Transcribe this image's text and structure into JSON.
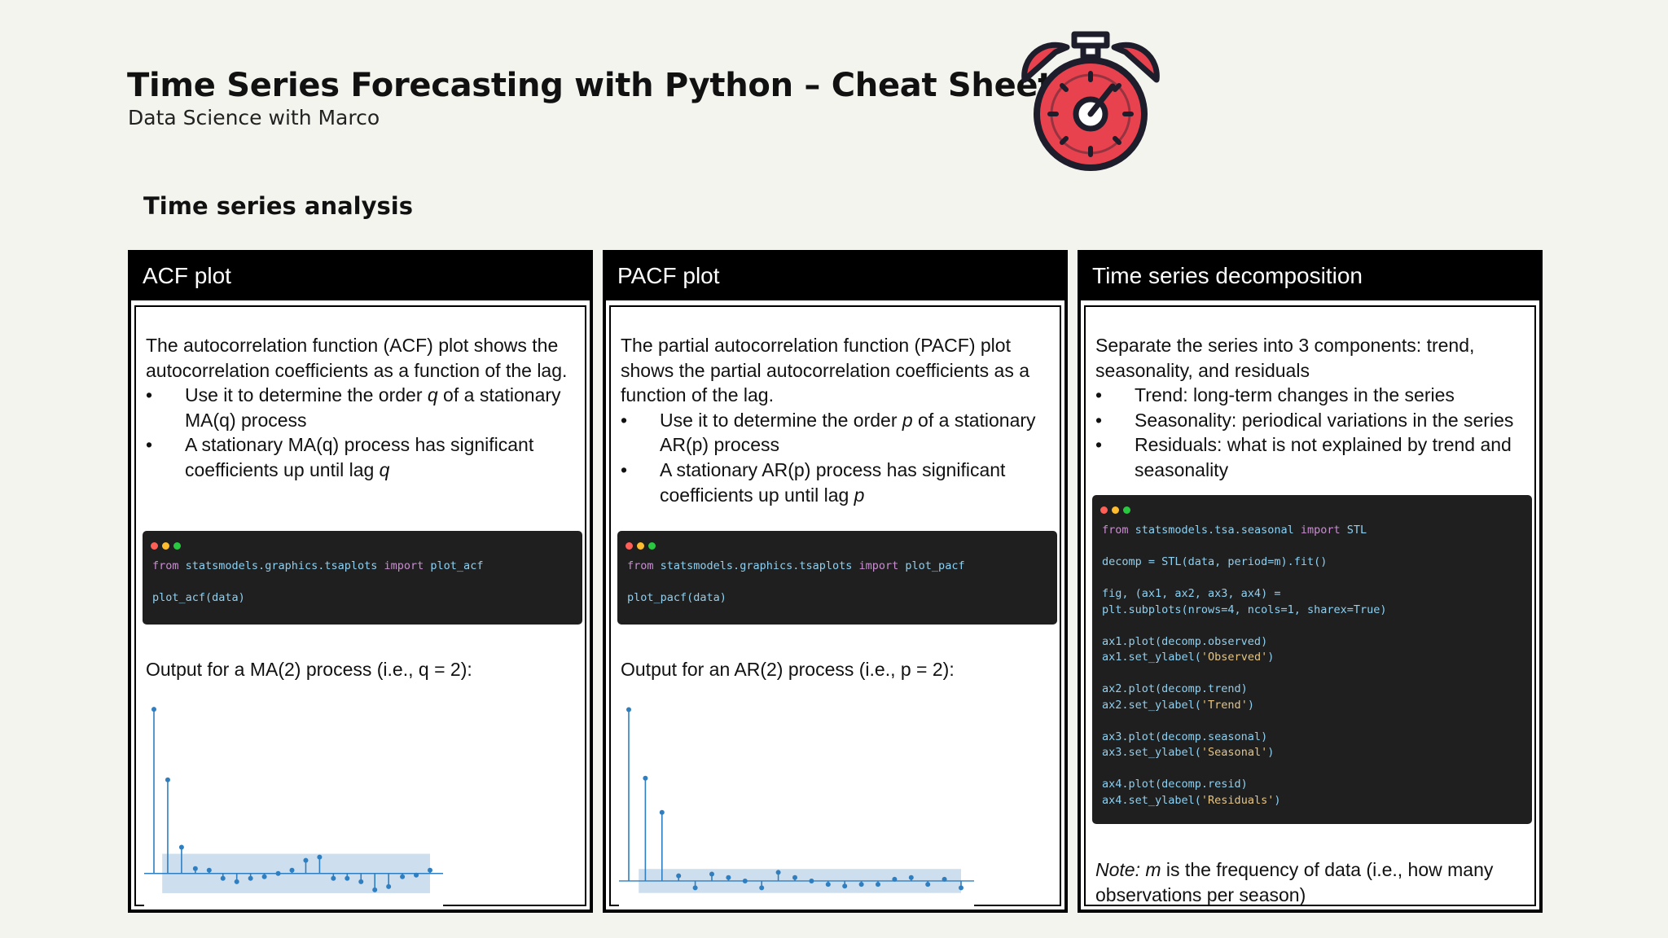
{
  "header": {
    "title": "Time Series Forecasting with Python – Cheat Sheet",
    "subtitle": "Data Science with Marco",
    "logo_icon": "stopwatch-icon"
  },
  "section": {
    "title": "Time series analysis"
  },
  "colors": {
    "accent": "#e8424f",
    "dark": "#1d1d2b",
    "code_bg": "#1f1f1f",
    "stem": "#2f7fc0",
    "band": "#bcd3e8"
  },
  "panels": {
    "acf": {
      "heading": "ACF plot",
      "intro": "The autocorrelation function (ACF) plot shows the autocorrelation coefficients as a function of the lag.",
      "bullet1_pre": "Use it to determine the order ",
      "bullet1_var": "q",
      "bullet1_post": " of a stationary MA(q) process",
      "bullet2_pre": "A stationary MA(q) process has significant coefficients up until lag ",
      "bullet2_var": "q",
      "code_line1_from": "from",
      "code_line1_mod": "statsmodels.graphics.tsaplots",
      "code_line1_import": "import",
      "code_line1_name": "plot_acf",
      "code_line2": "plot_acf(data)",
      "output_label": "Output for a MA(2) process (i.e., q = 2):"
    },
    "pacf": {
      "heading": "PACF plot",
      "intro": "The partial autocorrelation function (PACF) plot shows the partial autocorrelation coefficients as a function of the lag.",
      "bullet1_pre": "Use it to determine the order ",
      "bullet1_var": "p",
      "bullet1_post": " of a stationary AR(p) process",
      "bullet2_pre": "A stationary AR(p) process has significant coefficients up until lag ",
      "bullet2_var": "p",
      "code_line1_from": "from",
      "code_line1_mod": "statsmodels.graphics.tsaplots",
      "code_line1_import": "import",
      "code_line1_name": "plot_pacf",
      "code_line2": "plot_pacf(data)",
      "output_label": "Output for an AR(2) process (i.e., p = 2):"
    },
    "decomp": {
      "heading": "Time series decomposition",
      "intro": "Separate the series into 3 components: trend, seasonality, and residuals",
      "bullets": [
        "Trend: long-term changes in the series",
        "Seasonality: periodical variations in the series",
        "Residuals: what is not explained by trend and seasonality"
      ],
      "code": {
        "l1_from": "from",
        "l1_mod": "statsmodels.tsa.seasonal",
        "l1_import": "import",
        "l1_name": "STL",
        "l2": "decomp = STL(data, period=m).fit()",
        "l3": "fig, (ax1, ax2, ax3, ax4) =",
        "l4": "plt.subplots(nrows=4, ncols=1, sharex=True)",
        "l5": "ax1.plot(decomp.observed)",
        "l6_pre": "ax1.set_ylabel(",
        "l6_str": "'Observed'",
        "l7": "ax2.plot(decomp.trend)",
        "l8_pre": "ax2.set_ylabel(",
        "l8_str": "'Trend'",
        "l9": "ax3.plot(decomp.seasonal)",
        "l10_pre": "ax3.set_ylabel(",
        "l10_str": "'Seasonal'",
        "l11": "ax4.plot(decomp.resid)",
        "l12_pre": "ax4.set_ylabel(",
        "l12_str": "'Residuals'",
        "close": ")"
      },
      "note_label": "Note:",
      "note_var": "m",
      "note_rest": " is the frequency of data (i.e., how many observations per season)"
    }
  },
  "chart_data": [
    {
      "type": "stem",
      "chart": "acf",
      "x": [
        0,
        1,
        2,
        3,
        4,
        5,
        6,
        7,
        8,
        9,
        10,
        11,
        12,
        13,
        14,
        15,
        16,
        17,
        18,
        19,
        20
      ],
      "values": [
        1.0,
        0.57,
        0.16,
        0.03,
        0.02,
        -0.03,
        -0.05,
        -0.03,
        -0.02,
        0.0,
        0.02,
        0.08,
        0.1,
        -0.03,
        -0.03,
        -0.05,
        -0.1,
        -0.08,
        -0.02,
        -0.01,
        0.02
      ],
      "ylim": [
        -0.15,
        1.05
      ],
      "confidence_band": 0.12
    },
    {
      "type": "stem",
      "chart": "pacf",
      "x": [
        0,
        1,
        2,
        3,
        4,
        5,
        6,
        7,
        8,
        9,
        10,
        11,
        12,
        13,
        14,
        15,
        16,
        17,
        18,
        19,
        20
      ],
      "values": [
        1.0,
        0.6,
        0.4,
        0.03,
        -0.04,
        0.04,
        0.02,
        0.0,
        -0.04,
        0.05,
        0.02,
        0.0,
        -0.02,
        -0.03,
        -0.02,
        -0.02,
        0.01,
        0.02,
        -0.02,
        0.01,
        -0.04
      ],
      "ylim": [
        -0.1,
        1.05
      ],
      "confidence_band": 0.07
    }
  ]
}
